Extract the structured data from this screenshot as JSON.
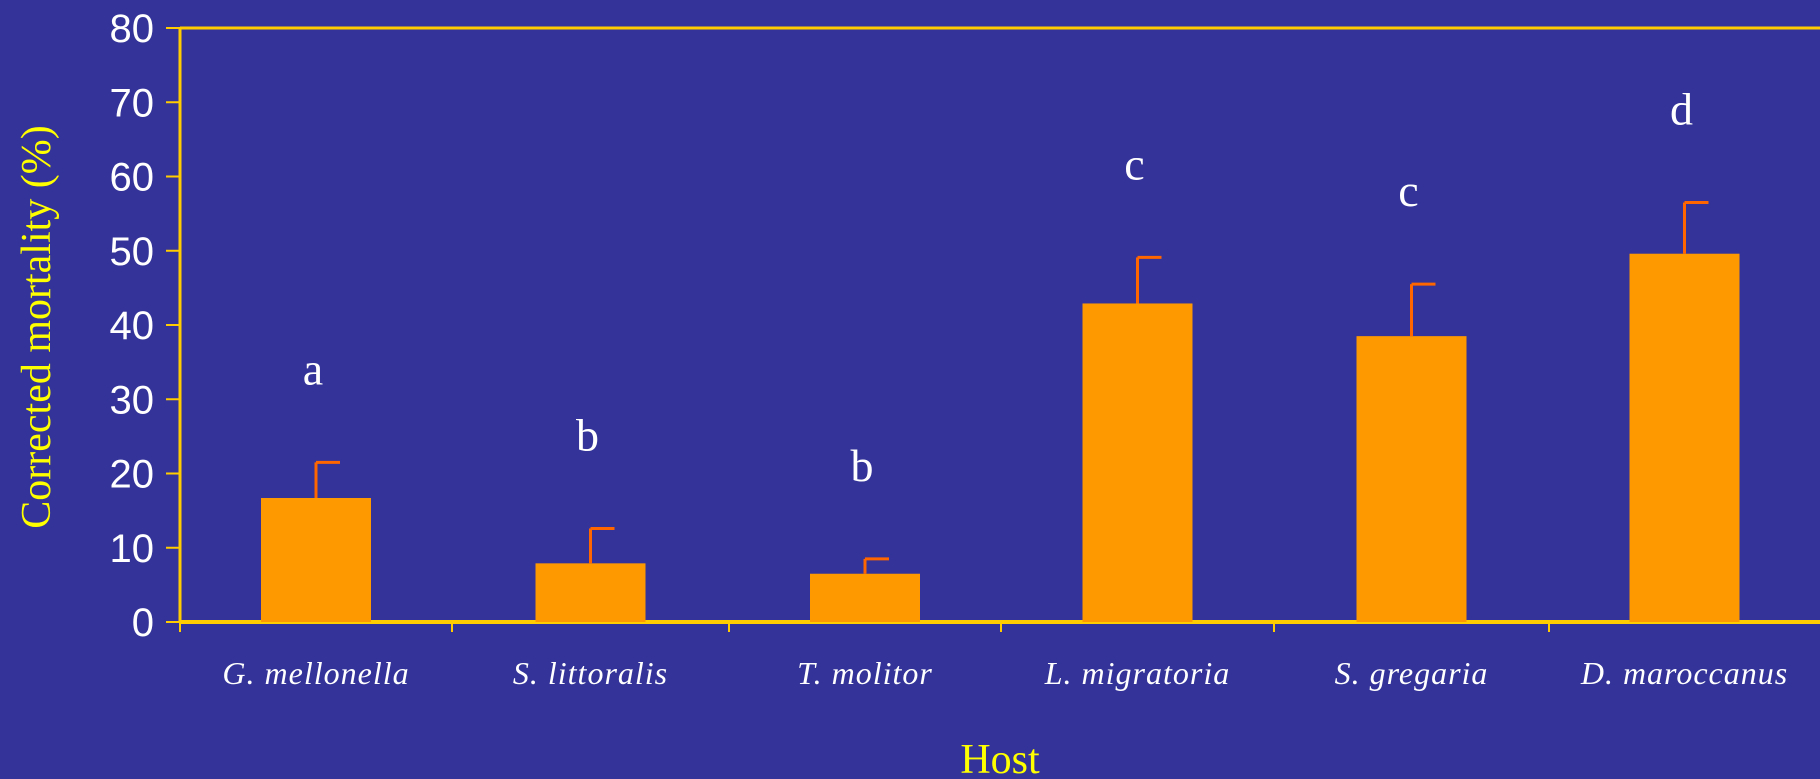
{
  "chart_data": {
    "type": "bar",
    "title": "",
    "xlabel": "Host",
    "ylabel": "Corrected mortality (%)",
    "ylim": [
      0,
      80
    ],
    "yticks": [
      0,
      10,
      20,
      30,
      40,
      50,
      60,
      70,
      80
    ],
    "grid": false,
    "categories": [
      "G. mellonella",
      "S. littoralis",
      "T. molitor",
      "L. migratoria",
      "S. gregaria",
      "D. maroccanus"
    ],
    "values": [
      16.7,
      7.9,
      6.5,
      42.9,
      38.5,
      49.6
    ],
    "error_upper": [
      4.8,
      4.7,
      2.0,
      6.2,
      7.0,
      6.9
    ],
    "significance_labels": [
      "a",
      "b",
      "b",
      "c",
      "c",
      "d"
    ],
    "colors": {
      "background": "#333399",
      "bar": "#ff9900",
      "error_bar": "#ff6600",
      "axis": "#ffcc00",
      "axis_title": "#ffff00",
      "tick_text": "#ffffff"
    }
  }
}
